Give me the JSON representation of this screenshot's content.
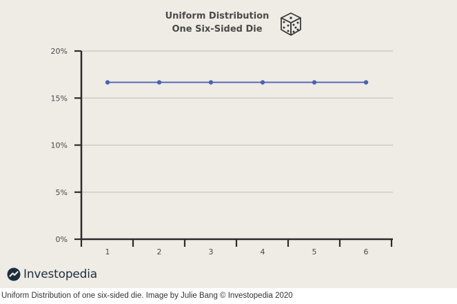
{
  "chart_data": {
    "type": "line",
    "title": "Uniform Distribution",
    "subtitle": "One Six-Sided Die",
    "xlabel": "",
    "ylabel": "",
    "categories": [
      "1",
      "2",
      "3",
      "4",
      "5",
      "6"
    ],
    "series": [
      {
        "values": [
          16.67,
          16.67,
          16.67,
          16.67,
          16.67,
          16.67
        ]
      }
    ],
    "ylim": [
      0,
      20
    ],
    "yticks": [
      "0%",
      "5%",
      "10%",
      "15%",
      "20%"
    ],
    "grid": true,
    "colors": {
      "line": "#4a63b4",
      "grid": "#c8c4be",
      "axis": "#2b2b2b",
      "background": "#efebe5"
    }
  },
  "branding": {
    "logo_text": "Investopedia",
    "logo_icon": "investopedia-logo-icon",
    "dice_icon": "dice-icon"
  },
  "caption": "Uniform Distribution of one six-sided die. Image by Julie Bang © Investopedia 2020"
}
